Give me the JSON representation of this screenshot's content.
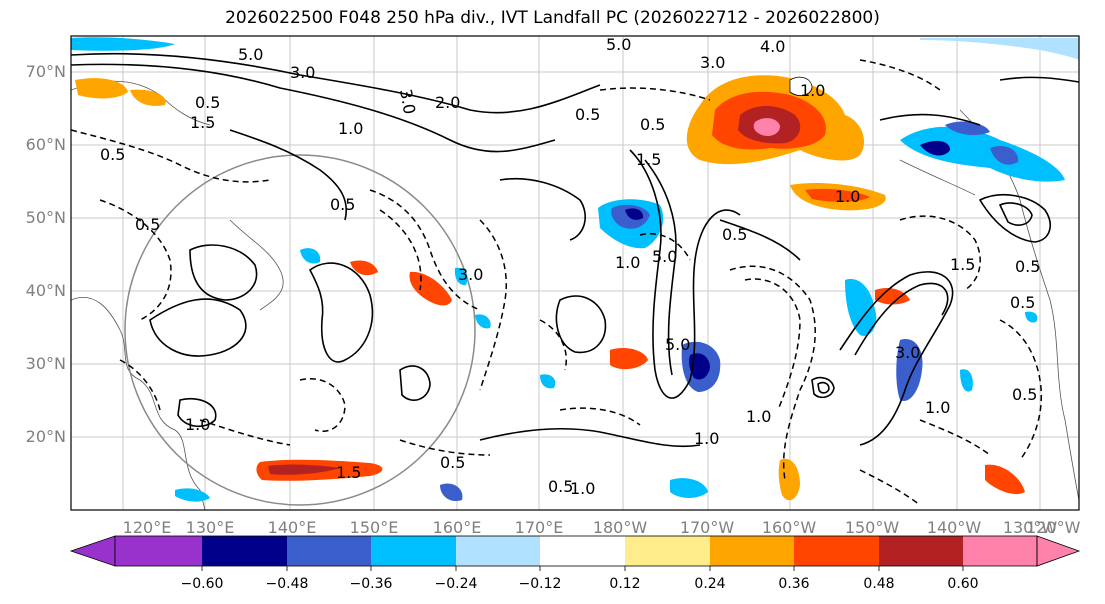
{
  "title": "2026022500 F048 250 hPa div., IVT Landfall PC (2026022712 - 2026022800)",
  "lat_labels": [
    "70°N",
    "60°N",
    "50°N",
    "40°N",
    "30°N",
    "20°N"
  ],
  "lon_labels": [
    "120°E",
    "130°E",
    "140°E",
    "150°E",
    "160°E",
    "170°E",
    "180°W",
    "170°W",
    "160°W",
    "150°W",
    "140°W",
    "130°W",
    "120°W"
  ],
  "colorbar": {
    "ticks": [
      "−0.60",
      "−0.48",
      "−0.36",
      "−0.24",
      "−0.12",
      "0.12",
      "0.24",
      "0.36",
      "0.48",
      "0.60"
    ],
    "colors": [
      "#9932cc",
      "#00008b",
      "#3a5fcd",
      "#00bfff",
      "#b0e2ff",
      "#ffffff",
      "#ffec8b",
      "#ffa500",
      "#ff4500",
      "#b22222",
      "#ff82ab"
    ]
  },
  "contour_labels": [
    "5.0",
    "3.0",
    "3.0",
    "2.0",
    "0.5",
    "1.5",
    "1.0",
    "0.5",
    "0.5",
    "3.0",
    "5.0",
    "1.5",
    "1.0",
    "0.5",
    "5.0",
    "0.5",
    "3.0",
    "1.0",
    "0.5",
    "1.0",
    "1.5",
    "0.5",
    "1.0",
    "0.5",
    "5.0",
    "4.0",
    "3.0",
    "0.5",
    "1.0",
    "0.5",
    "1.0",
    "1.5",
    "0.5",
    "1.0",
    "1.0",
    "0.5"
  ]
}
